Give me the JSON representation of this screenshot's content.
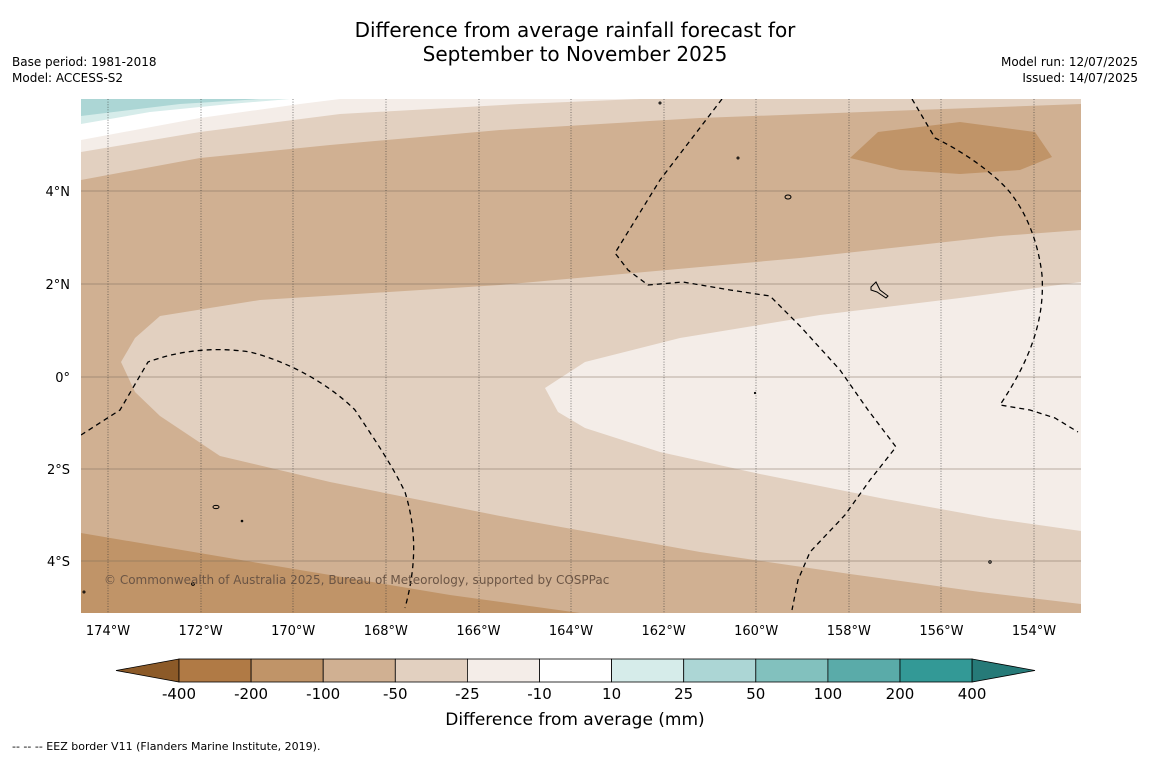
{
  "title_line1": "Difference from average rainfall forecast for",
  "title_line2": "September to November 2025",
  "base_period": "Base period: 1981-2018",
  "model": "Model: ACCESS-S2",
  "model_run": "Model run: 12/07/2025",
  "issued": "Issued: 14/07/2025",
  "copyright": "© Commonwealth of Australia 2025, Bureau of Meteorology, supported by COSPPac",
  "lat_labels": [
    "4°N",
    "2°N",
    "0°",
    "2°S",
    "4°S"
  ],
  "lon_labels": [
    "174°W",
    "172°W",
    "170°W",
    "168°W",
    "166°W",
    "164°W",
    "162°W",
    "160°W",
    "158°W",
    "156°W",
    "154°W"
  ],
  "colorbar": {
    "title": "Difference from average (mm)",
    "ticks": [
      "-400",
      "-200",
      "-100",
      "-50",
      "-25",
      "-10",
      "10",
      "25",
      "50",
      "100",
      "200",
      "400"
    ],
    "colors": [
      "#8c5a28",
      "#b07a45",
      "#c09468",
      "#d0b092",
      "#e2d0c0",
      "#f4ede8",
      "#ffffff",
      "#d6ecea",
      "#acd6d5",
      "#82c1be",
      "#5aaba9",
      "#339996",
      "#267a78"
    ]
  },
  "footnote": "--  --  -- EEZ border V11 (Flanders Marine Institute, 2019)."
}
